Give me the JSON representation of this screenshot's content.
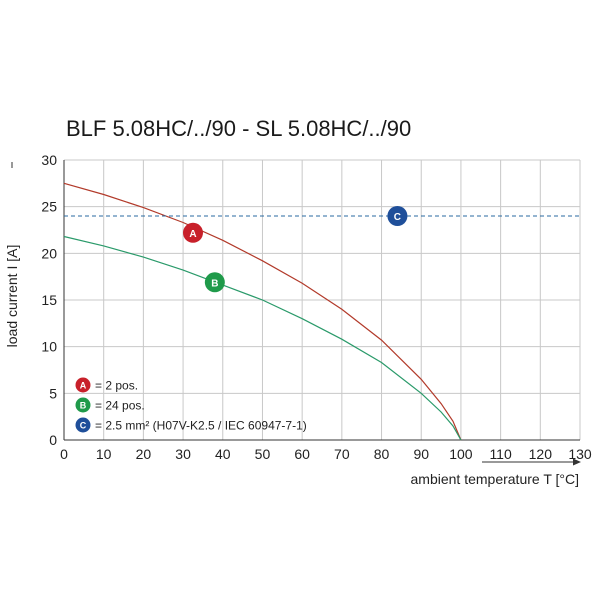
{
  "chart_data": {
    "type": "line",
    "title": "BLF 5.08HC/../90 - SL 5.08HC/../90",
    "xlabel": "ambient temperature T [°C]",
    "ylabel": "load current I [A]",
    "xlim": [
      0,
      130
    ],
    "ylim": [
      0,
      30
    ],
    "xticks": [
      0,
      10,
      20,
      30,
      40,
      50,
      60,
      70,
      80,
      90,
      100,
      110,
      120,
      130
    ],
    "yticks": [
      0,
      5,
      10,
      15,
      20,
      25,
      30
    ],
    "grid": true,
    "legend_position": "bottom-left",
    "series": [
      {
        "name": "A",
        "color": "#b23a2a",
        "marker_x": 32.5,
        "marker_y": 22.2,
        "x": [
          0,
          10,
          20,
          30,
          40,
          50,
          60,
          70,
          80,
          90,
          95,
          98,
          100
        ],
        "y": [
          27.5,
          26.3,
          24.9,
          23.3,
          21.4,
          19.2,
          16.8,
          14.0,
          10.7,
          6.5,
          3.9,
          2.0,
          0
        ]
      },
      {
        "name": "B",
        "color": "#2a9a6a",
        "marker_x": 38,
        "marker_y": 16.9,
        "x": [
          0,
          10,
          20,
          30,
          40,
          50,
          60,
          70,
          80,
          90,
          95,
          98,
          100
        ],
        "y": [
          21.8,
          20.8,
          19.6,
          18.2,
          16.6,
          15.0,
          13.0,
          10.8,
          8.3,
          5.0,
          3.0,
          1.5,
          0
        ]
      },
      {
        "name": "C",
        "color": "#2a6aa0",
        "style": "dashed",
        "marker_x": 84,
        "marker_y": 24,
        "x": [
          0,
          130
        ],
        "y": [
          24,
          24
        ]
      }
    ],
    "legend": [
      {
        "badge": "A",
        "text": "= 2 pos.",
        "badge_color": "#c8202a"
      },
      {
        "badge": "B",
        "text": "= 24 pos.",
        "badge_color": "#1f9a4a"
      },
      {
        "badge": "C",
        "text": "= 2.5 mm² (H07V-K2.5 / IEC 60947-7-1)",
        "badge_color": "#1f4f9a"
      }
    ]
  }
}
